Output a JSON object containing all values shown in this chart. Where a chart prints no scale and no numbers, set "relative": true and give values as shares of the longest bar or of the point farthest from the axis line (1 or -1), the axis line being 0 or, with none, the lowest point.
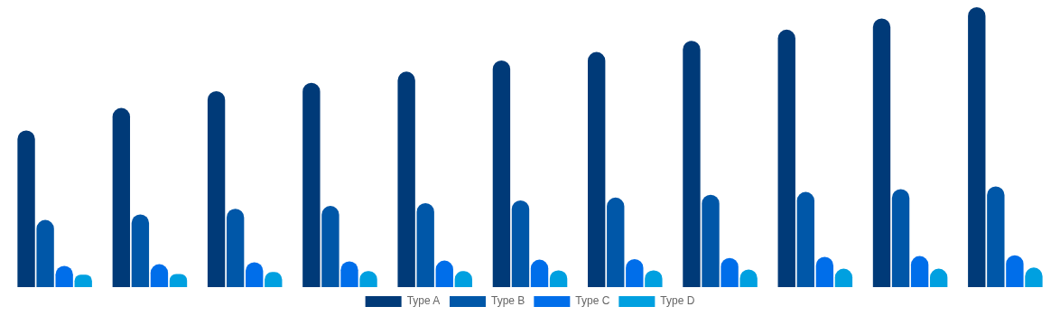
{
  "chart_data": {
    "type": "bar",
    "relative": true,
    "legend": "bottom",
    "categories": [
      null,
      null,
      null,
      null,
      null,
      null,
      null,
      null,
      null,
      null,
      null
    ],
    "series": [
      {
        "name": "Type A",
        "color": "#003a78",
        "values": [
          0.56,
          0.64,
          0.7,
          0.73,
          0.77,
          0.81,
          0.84,
          0.88,
          0.92,
          0.96,
          1
        ]
      },
      {
        "name": "Type B",
        "color": "#0057a8",
        "values": [
          0.24,
          0.26,
          0.28,
          0.29,
          0.3,
          0.31,
          0.32,
          0.33,
          0.34,
          0.35,
          0.36
        ]
      },
      {
        "name": "Type C",
        "color": "#006eea",
        "values": [
          0.076,
          0.082,
          0.089,
          0.092,
          0.095,
          0.098,
          0.1,
          0.104,
          0.108,
          0.111,
          0.114
        ]
      },
      {
        "name": "Type D",
        "color": "#00a0e0",
        "values": [
          0.044,
          0.047,
          0.054,
          0.057,
          0.057,
          0.06,
          0.06,
          0.063,
          0.066,
          0.066,
          0.07
        ]
      }
    ]
  }
}
